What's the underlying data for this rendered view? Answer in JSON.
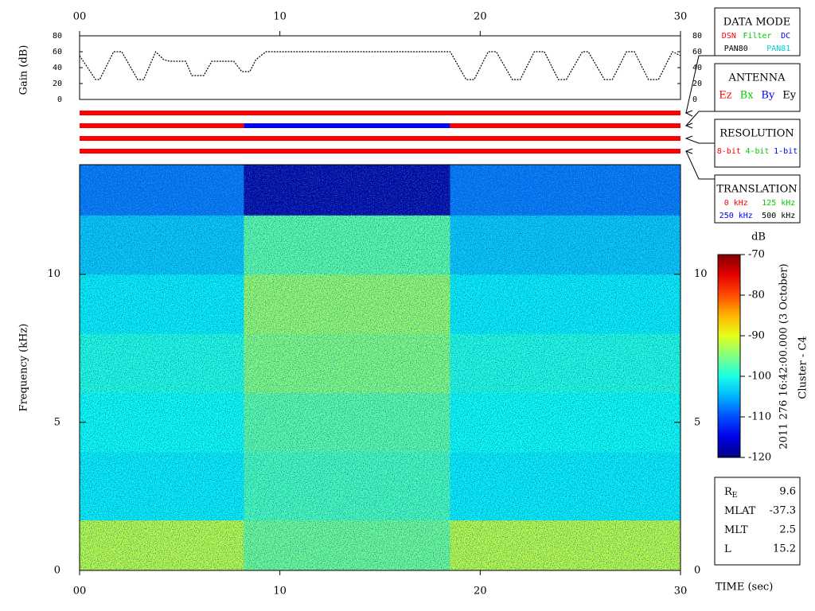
{
  "chart_data": [
    {
      "type": "line",
      "ylabel": "Gain (dB)",
      "color": "#000000",
      "xlim": [
        0,
        30
      ],
      "ylim": [
        0,
        80
      ],
      "xticks": [
        {
          "value": 0,
          "label": "00"
        },
        {
          "value": 10,
          "label": "10"
        },
        {
          "value": 20,
          "label": "20"
        },
        {
          "value": 30,
          "label": "30"
        }
      ],
      "yticks": [
        0,
        20,
        40,
        60,
        80
      ],
      "x": [
        0,
        0.8,
        1.0,
        1.7,
        2.1,
        2.9,
        3.2,
        3.8,
        4.2,
        4.5,
        5.3,
        5.6,
        6.2,
        6.6,
        6.9,
        7.7,
        8.1,
        8.5,
        8.8,
        9.3,
        18.5,
        19.3,
        19.7,
        20.4,
        20.8,
        21.6,
        22.0,
        22.7,
        23.2,
        23.9,
        24.3,
        25.1,
        25.4,
        26.2,
        26.6,
        27.3,
        27.7,
        28.4,
        28.9,
        29.6,
        30
      ],
      "values": [
        55,
        25,
        25,
        60,
        60,
        25,
        25,
        60,
        50,
        48,
        48,
        30,
        30,
        48,
        48,
        48,
        35,
        35,
        50,
        60,
        60,
        25,
        25,
        60,
        60,
        25,
        25,
        60,
        60,
        25,
        25,
        60,
        60,
        25,
        25,
        60,
        60,
        25,
        25,
        60,
        55
      ]
    },
    {
      "type": "timeline",
      "xlim": [
        0,
        30
      ],
      "rows": [
        [
          {
            "start": 0,
            "end": 30,
            "color": "#ff0000"
          }
        ],
        [
          {
            "start": 0,
            "end": 8.2,
            "color": "#ff0000"
          },
          {
            "start": 8.2,
            "end": 18.5,
            "color": "#0000ff"
          },
          {
            "start": 18.5,
            "end": 30,
            "color": "#ff0000"
          }
        ],
        [
          {
            "start": 0,
            "end": 30,
            "color": "#ff0000"
          }
        ],
        [
          {
            "start": 0,
            "end": 30,
            "color": "#ff0000"
          }
        ]
      ]
    },
    {
      "type": "heatmap",
      "xlabel": "TIME (sec)",
      "ylabel": "Frequency (kHz)",
      "colorbar_label": "dB",
      "xlim": [
        0,
        30
      ],
      "ylim": [
        0,
        13.7
      ],
      "zlim": [
        -120,
        -70
      ],
      "xticks": [
        {
          "value": 0,
          "label": "00"
        },
        {
          "value": 10,
          "label": "10"
        },
        {
          "value": 20,
          "label": "20"
        },
        {
          "value": 30,
          "label": "30"
        }
      ],
      "yticks": [
        0,
        5,
        10
      ],
      "zticks": [
        -70,
        -80,
        -90,
        -100,
        -110,
        -120
      ],
      "x_bins": [
        0,
        2,
        4,
        6,
        8.2,
        10,
        12,
        14,
        16,
        18.5,
        20,
        22,
        24,
        26,
        28,
        30
      ],
      "y_bins": [
        0,
        1.7,
        4,
        6,
        8,
        10,
        12,
        13.7
      ],
      "values": [
        [
          -92,
          -92,
          -92,
          -92,
          -96,
          -96,
          -96,
          -96,
          -96,
          -92,
          -92,
          -92,
          -92,
          -92,
          -92
        ],
        [
          -102,
          -102,
          -102,
          -102,
          -98,
          -98,
          -98,
          -98,
          -98,
          -102,
          -102,
          -102,
          -102,
          -102,
          -102
        ],
        [
          -101,
          -101,
          -101,
          -101,
          -97,
          -97,
          -97,
          -97,
          -97,
          -101,
          -101,
          -101,
          -101,
          -101,
          -101
        ],
        [
          -100,
          -100,
          -100,
          -100,
          -95,
          -95,
          -95,
          -95,
          -95,
          -100,
          -100,
          -100,
          -100,
          -100,
          -100
        ],
        [
          -102,
          -102,
          -102,
          -102,
          -94,
          -94,
          -94,
          -94,
          -94,
          -102,
          -102,
          -102,
          -102,
          -102,
          -102
        ],
        [
          -104,
          -104,
          -104,
          -104,
          -97,
          -97,
          -97,
          -97,
          -97,
          -104,
          -104,
          -104,
          -104,
          -104,
          -104
        ],
        [
          -108,
          -108,
          -108,
          -108,
          -118,
          -118,
          -118,
          -118,
          -118,
          -108,
          -108,
          -108,
          -108,
          -108,
          -108
        ]
      ]
    }
  ],
  "panels": [
    {
      "title": "DATA MODE",
      "rows": [
        [
          {
            "text": "DSN",
            "color": "#ff0000"
          },
          {
            "text": "Filter",
            "color": "#00cc00"
          },
          {
            "text": "DC",
            "color": "#0000ff"
          }
        ],
        [
          {
            "text": "PAN80",
            "color": "#000000"
          },
          {
            "text": "PAN81",
            "color": "#00cccc"
          }
        ]
      ]
    },
    {
      "title": "ANTENNA",
      "rows": [
        [
          {
            "text": "Ez",
            "color": "#ff0000"
          },
          {
            "text": "Bx",
            "color": "#00cc00"
          },
          {
            "text": "By",
            "color": "#0000ff"
          },
          {
            "text": "Ey",
            "color": "#000000"
          }
        ]
      ]
    },
    {
      "title": "RESOLUTION",
      "rows": [
        [
          {
            "text": "8-bit",
            "color": "#ff0000"
          },
          {
            "text": "4-bit",
            "color": "#00cc00"
          },
          {
            "text": "1-bit",
            "color": "#0000ff"
          }
        ]
      ]
    },
    {
      "title": "TRANSLATION",
      "rows": [
        [
          {
            "text": "0 kHz",
            "color": "#ff0000"
          },
          {
            "text": "125 kHz",
            "color": "#00cc00"
          }
        ],
        [
          {
            "text": "250 kHz",
            "color": "#0000ff"
          },
          {
            "text": "500 kHz",
            "color": "#000000"
          }
        ]
      ]
    }
  ],
  "timestamp": "2011 276 16:42:00.000 (3 October)",
  "spacecraft": "Cluster - C4",
  "info": [
    {
      "label": "R",
      "sub": "E",
      "value": 9.6
    },
    {
      "label": "MLAT",
      "value": -37.3
    },
    {
      "label": "MLT",
      "value": 2.5
    },
    {
      "label": "L",
      "value": 15.2
    }
  ]
}
